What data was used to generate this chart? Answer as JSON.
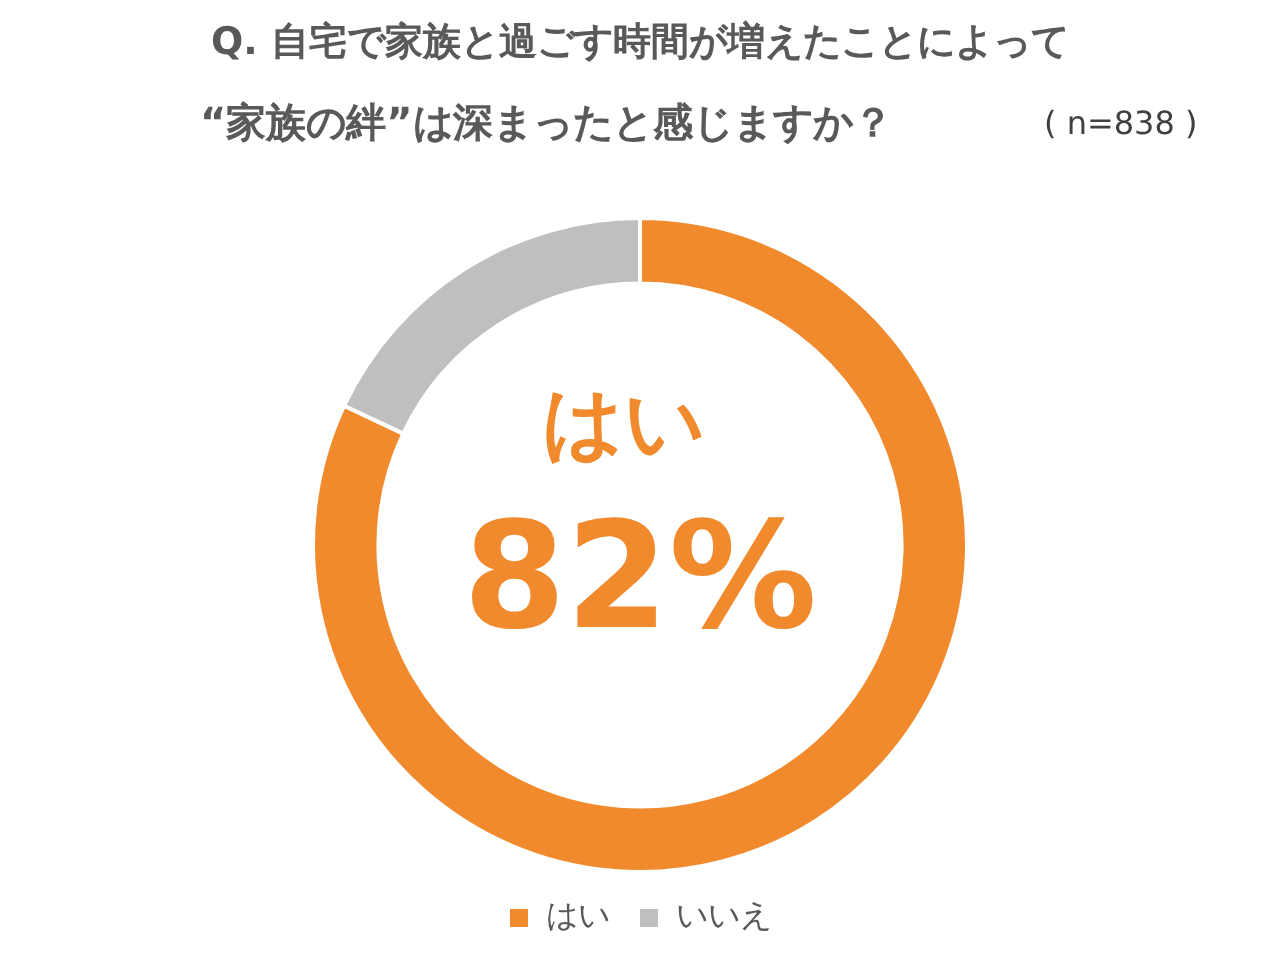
{
  "chart_data": {
    "type": "donut",
    "title": "Q. 自宅で家族と過ごす時間が増えたことによって",
    "subtitle": "“家族の絆”は深まったと感じますか？",
    "categories": [
      "はい",
      "いいえ"
    ],
    "values": [
      82,
      18
    ],
    "colors": [
      "#f08a2c",
      "#bfbfbf"
    ],
    "legend": "bottom",
    "annotations": [
      "( n=838 )",
      "はい",
      "82%"
    ]
  }
}
